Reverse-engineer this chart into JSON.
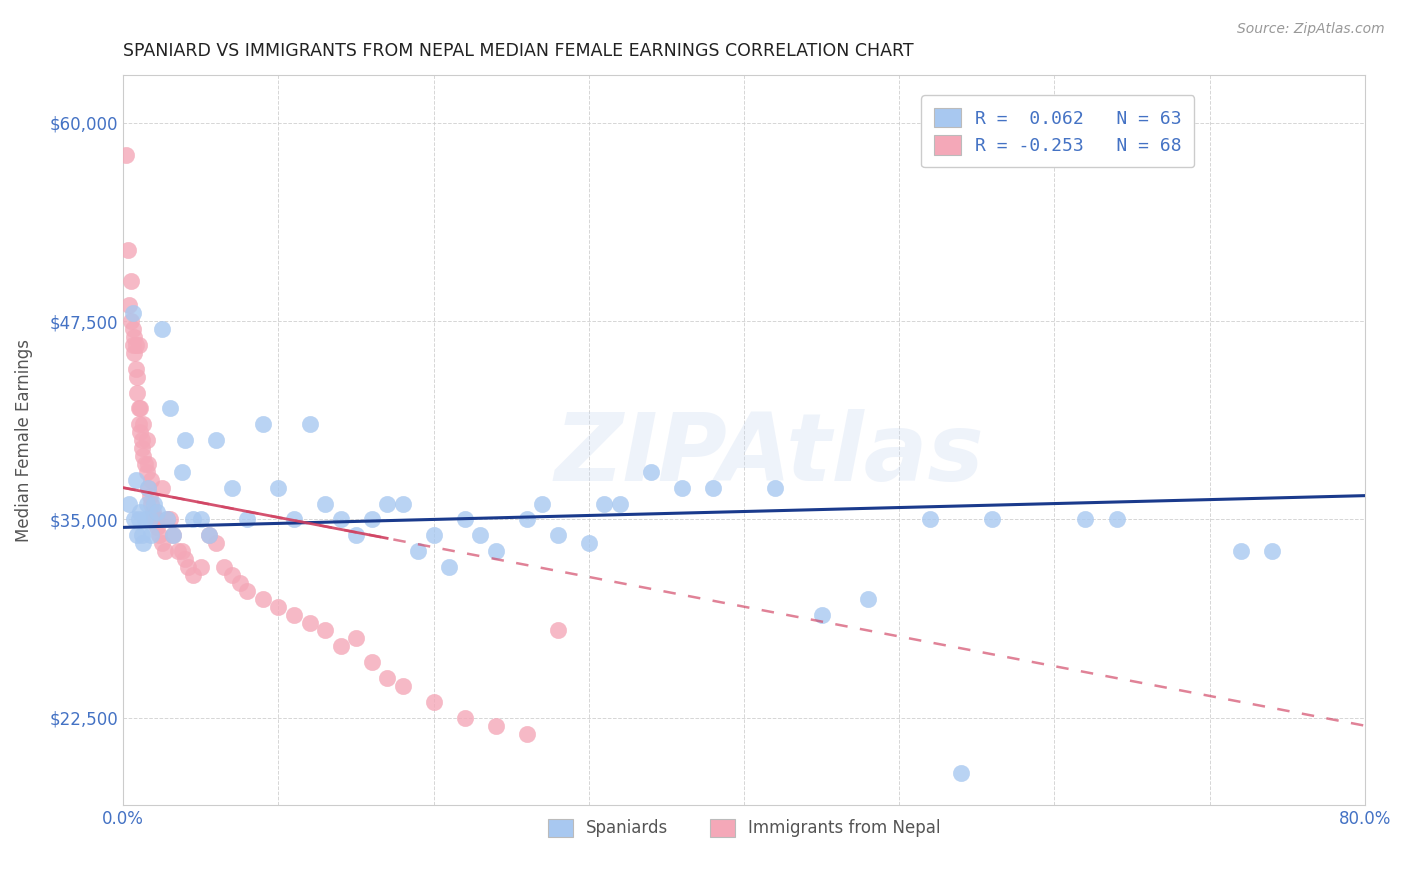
{
  "title": "SPANIARD VS IMMIGRANTS FROM NEPAL MEDIAN FEMALE EARNINGS CORRELATION CHART",
  "source": "Source: ZipAtlas.com",
  "ylabel": "Median Female Earnings",
  "watermark": "ZIPAtlas",
  "xlim": [
    0.0,
    0.8
  ],
  "ylim": [
    17000,
    63000
  ],
  "xticks": [
    0.0,
    0.1,
    0.2,
    0.3,
    0.4,
    0.5,
    0.6,
    0.7,
    0.8
  ],
  "xticklabels": [
    "0.0%",
    "",
    "",
    "",
    "",
    "",
    "",
    "",
    "80.0%"
  ],
  "yticks": [
    22500,
    35000,
    47500,
    60000
  ],
  "yticklabels": [
    "$22,500",
    "$35,000",
    "$47,500",
    "$60,000"
  ],
  "legend_r1": "R =  0.062",
  "legend_n1": "N = 63",
  "legend_r2": "R = -0.253",
  "legend_n2": "N = 68",
  "legend_label1": "Spaniards",
  "legend_label2": "Immigrants from Nepal",
  "blue_color": "#A8C8F0",
  "pink_color": "#F4A8B8",
  "blue_line_color": "#1A3A8C",
  "pink_line_color": "#D04060",
  "axis_color": "#4472C4",
  "grid_color": "#CCCCCC",
  "spaniards_x": [
    0.004,
    0.006,
    0.007,
    0.008,
    0.009,
    0.01,
    0.011,
    0.012,
    0.013,
    0.014,
    0.015,
    0.016,
    0.017,
    0.018,
    0.02,
    0.022,
    0.025,
    0.028,
    0.03,
    0.032,
    0.038,
    0.04,
    0.045,
    0.05,
    0.055,
    0.06,
    0.07,
    0.08,
    0.09,
    0.1,
    0.11,
    0.12,
    0.13,
    0.14,
    0.15,
    0.16,
    0.17,
    0.18,
    0.19,
    0.2,
    0.21,
    0.22,
    0.23,
    0.24,
    0.26,
    0.27,
    0.28,
    0.3,
    0.31,
    0.32,
    0.34,
    0.36,
    0.38,
    0.42,
    0.45,
    0.48,
    0.52,
    0.54,
    0.56,
    0.62,
    0.64,
    0.72,
    0.74
  ],
  "spaniards_y": [
    36000,
    48000,
    35000,
    37500,
    34000,
    35000,
    35500,
    34000,
    33500,
    35000,
    36000,
    37000,
    35000,
    34000,
    36000,
    35500,
    47000,
    35000,
    42000,
    34000,
    38000,
    40000,
    35000,
    35000,
    34000,
    40000,
    37000,
    35000,
    41000,
    37000,
    35000,
    41000,
    36000,
    35000,
    34000,
    35000,
    36000,
    36000,
    33000,
    34000,
    32000,
    35000,
    34000,
    33000,
    35000,
    36000,
    34000,
    33500,
    36000,
    36000,
    38000,
    37000,
    37000,
    37000,
    29000,
    30000,
    35000,
    19000,
    35000,
    35000,
    35000,
    33000,
    33000
  ],
  "nepal_x": [
    0.002,
    0.003,
    0.004,
    0.005,
    0.005,
    0.006,
    0.006,
    0.007,
    0.007,
    0.008,
    0.008,
    0.009,
    0.009,
    0.01,
    0.01,
    0.01,
    0.011,
    0.011,
    0.012,
    0.012,
    0.013,
    0.013,
    0.014,
    0.015,
    0.015,
    0.016,
    0.016,
    0.017,
    0.018,
    0.018,
    0.019,
    0.02,
    0.021,
    0.022,
    0.023,
    0.025,
    0.025,
    0.027,
    0.028,
    0.03,
    0.032,
    0.035,
    0.038,
    0.04,
    0.042,
    0.045,
    0.05,
    0.055,
    0.06,
    0.065,
    0.07,
    0.075,
    0.08,
    0.09,
    0.1,
    0.11,
    0.12,
    0.13,
    0.14,
    0.15,
    0.16,
    0.17,
    0.18,
    0.2,
    0.22,
    0.24,
    0.26,
    0.28
  ],
  "nepal_y": [
    58000,
    52000,
    48500,
    47500,
    50000,
    47000,
    46000,
    45500,
    46500,
    44500,
    46000,
    44000,
    43000,
    42000,
    41000,
    46000,
    40500,
    42000,
    40000,
    39500,
    39000,
    41000,
    38500,
    38000,
    40000,
    37000,
    38500,
    36500,
    36000,
    37500,
    35500,
    35000,
    35000,
    34500,
    34000,
    33500,
    37000,
    33000,
    35000,
    35000,
    34000,
    33000,
    33000,
    32500,
    32000,
    31500,
    32000,
    34000,
    33500,
    32000,
    31500,
    31000,
    30500,
    30000,
    29500,
    29000,
    28500,
    28000,
    27000,
    27500,
    26000,
    25000,
    24500,
    23500,
    22500,
    22000,
    21500,
    28000
  ]
}
